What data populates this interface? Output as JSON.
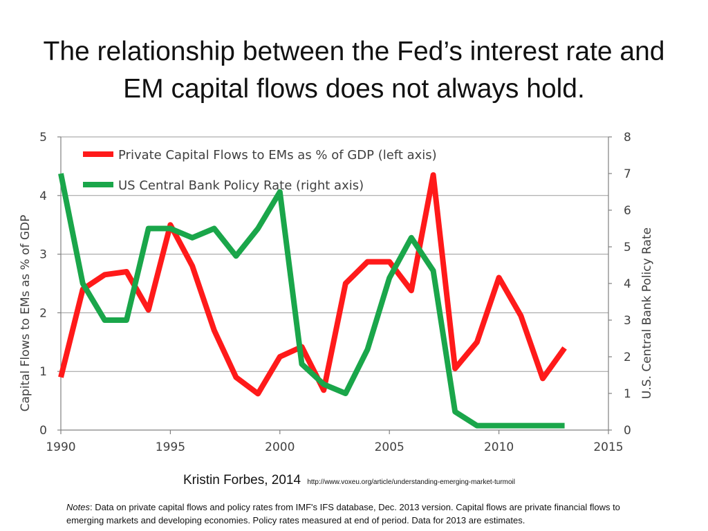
{
  "title": "The relationship between the Fed’s interest rate and EM capital flows does not always hold.",
  "credit": {
    "author": "Kristin Forbes, 2014",
    "url": "http://www.voxeu.org/article/understanding-emerging-market-turmoil"
  },
  "notes": {
    "label": "Notes",
    "text": ": Data on private capital flows and policy rates from IMF's IFS database, Dec. 2013 version. Capital flows are private financial flows to emerging markets and developing economies. Policy rates measured at end of period. Data for 2013 are estimates."
  },
  "chart_data": {
    "type": "line",
    "ylabel_left": "Capital Flows to EMs as % of GDP",
    "ylabel_right": "U.S. Central Bank Policy Rate",
    "xlim": [
      1990,
      2015
    ],
    "x_ticks": [
      1990,
      1995,
      2000,
      2005,
      2010,
      2015
    ],
    "ylim_left": [
      0,
      5
    ],
    "y_ticks_left": [
      0,
      1,
      2,
      3,
      4,
      5
    ],
    "ylim_right": [
      0,
      8
    ],
    "y_ticks_right": [
      0,
      1,
      2,
      3,
      4,
      5,
      6,
      7,
      8
    ],
    "grid": true,
    "legend_position": "top-left",
    "series": [
      {
        "name": "Private Capital Flows to EMs as % of GDP (left axis)",
        "axis": "left",
        "color": "#ff1a1a",
        "x": [
          1990,
          1991,
          1992,
          1993,
          1994,
          1995,
          1996,
          1997,
          1998,
          1999,
          2000,
          2001,
          2002,
          2003,
          2004,
          2005,
          2006,
          2007,
          2008,
          2009,
          2010,
          2011,
          2012,
          2013
        ],
        "values": [
          0.9,
          2.4,
          2.65,
          2.7,
          2.05,
          3.5,
          2.8,
          1.7,
          0.9,
          0.62,
          1.25,
          1.42,
          0.68,
          2.5,
          2.87,
          2.87,
          2.38,
          4.35,
          1.05,
          1.5,
          2.6,
          1.95,
          0.88,
          1.4
        ]
      },
      {
        "name": "US Central Bank Policy Rate (right axis)",
        "axis": "right",
        "color": "#1aa64a",
        "x": [
          1990,
          1991,
          1992,
          1993,
          1994,
          1995,
          1996,
          1997,
          1998,
          1999,
          2000,
          2001,
          2002,
          2003,
          2004,
          2005,
          2006,
          2007,
          2008,
          2009,
          2010,
          2011,
          2012,
          2013
        ],
        "values": [
          7.0,
          4.0,
          3.0,
          3.0,
          5.5,
          5.5,
          5.25,
          5.5,
          4.75,
          5.5,
          6.5,
          1.8,
          1.25,
          1.0,
          2.2,
          4.15,
          5.25,
          4.35,
          0.5,
          0.12,
          0.12,
          0.12,
          0.12,
          0.12
        ]
      }
    ]
  }
}
